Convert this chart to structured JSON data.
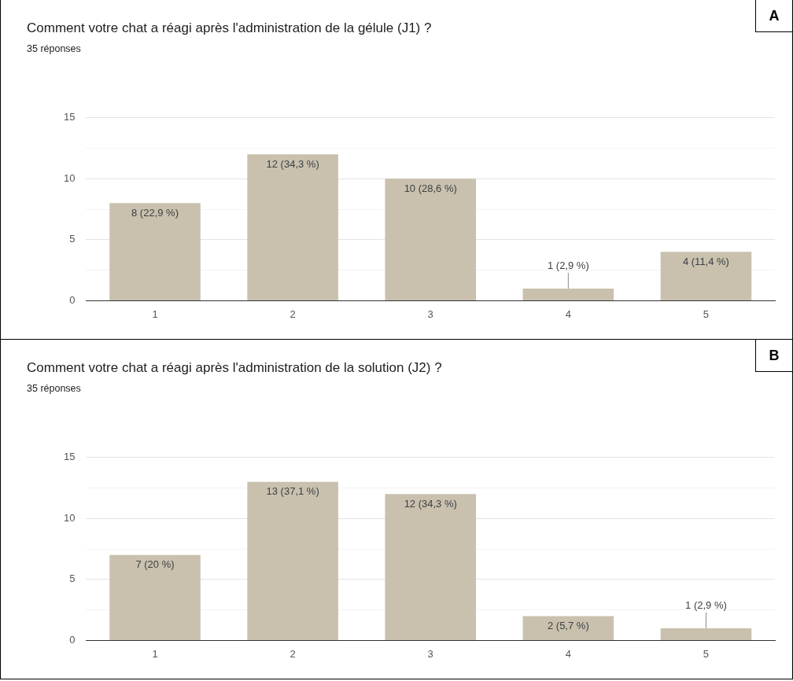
{
  "chart_data": [
    {
      "type": "bar",
      "title": "Comment votre chat a réagi après l'administration de la gélule (J1) ?",
      "subtitle": "35 réponses",
      "categories": [
        "1",
        "2",
        "3",
        "4",
        "5"
      ],
      "values": [
        8,
        12,
        10,
        1,
        4
      ],
      "value_labels": [
        "8 (22,9 %)",
        "12 (34,3 %)",
        "10 (28,6 %)",
        "1 (2,9 %)",
        "4 (11,4 %)"
      ],
      "color": "#c9c1ae",
      "ylim": [
        0,
        15
      ],
      "yticks": [
        0,
        {
          "value": 2.5,
          "label": null
        },
        5,
        {
          "value": 7.5,
          "label": null
        },
        10,
        {
          "value": 12.5,
          "label": null
        },
        15
      ],
      "grid": "y",
      "legend": false,
      "annotations": [
        "A"
      ]
    },
    {
      "type": "bar",
      "title": "Comment votre chat a réagi après l'administration de la solution (J2) ?",
      "subtitle": "35 réponses",
      "categories": [
        "1",
        "2",
        "3",
        "4",
        "5"
      ],
      "values": [
        7,
        13,
        12,
        2,
        1
      ],
      "value_labels": [
        "7 (20 %)",
        "13 (37,1 %)",
        "12 (34,3 %)",
        "2 (5,7 %)",
        "1 (2,9 %)"
      ],
      "color": "#c9c1ae",
      "ylim": [
        0,
        15
      ],
      "yticks": [
        0,
        {
          "value": 2.5,
          "label": null
        },
        5,
        {
          "value": 7.5,
          "label": null
        },
        10,
        {
          "value": 12.5,
          "label": null
        },
        15
      ],
      "grid": "y",
      "legend": false,
      "annotations": [
        "B"
      ]
    }
  ]
}
